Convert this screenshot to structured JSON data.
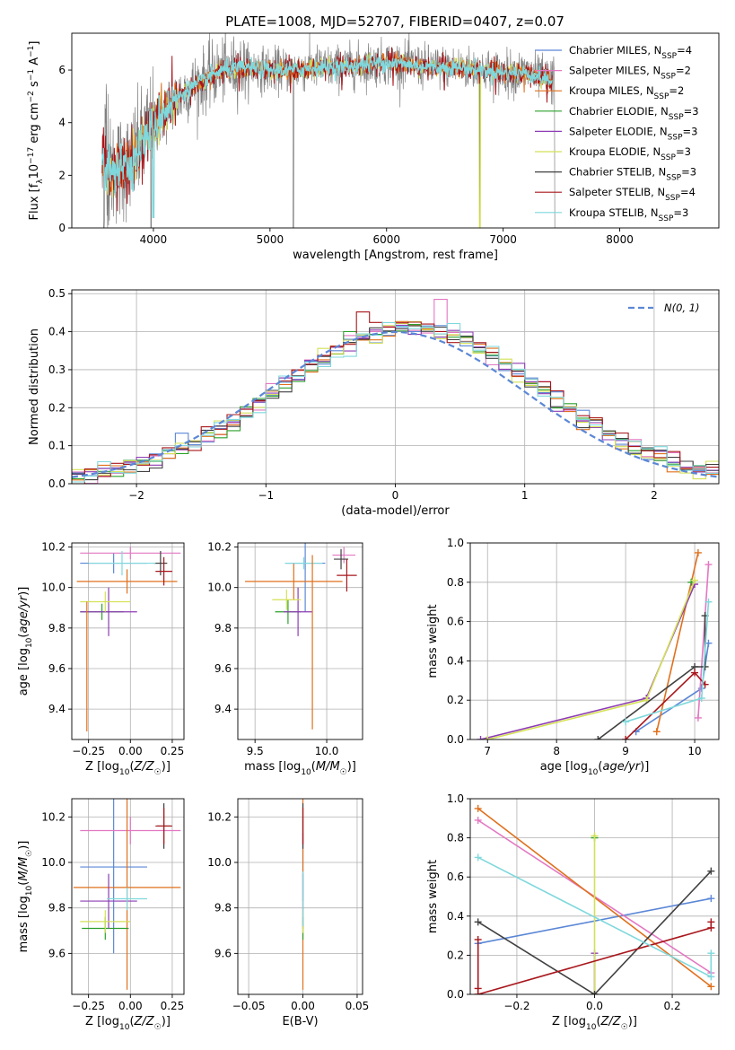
{
  "figure": {
    "title": "PLATE=1008, MJD=52707, FIBERID=0407, z=0.07"
  },
  "colors": {
    "Chabrier MILES": "#5b87d6",
    "Salpeter MILES": "#e377c2",
    "Kroupa MILES": "#e0701d",
    "Chabrier ELODIE": "#2ca02c",
    "Salpeter ELODIE": "#8e3cb4",
    "Kroupa ELODIE": "#d4e157",
    "Chabrier STELIB": "#404040",
    "Salpeter STELIB": "#a8171c",
    "Kroupa STELIB": "#7fd8dc",
    "data": "#808080",
    "gaussian": "#5b87d6"
  },
  "chart_data": [
    {
      "id": "spectrum",
      "type": "line",
      "xlabel": "wavelength [Angstrom, rest frame]",
      "ylabel": "Flux [f_λ10^-17 erg cm^-2 s^-1 A^-1]",
      "xlim": [
        3300,
        8850
      ],
      "ylim": [
        0,
        7.4
      ],
      "xticks": [
        4000,
        5000,
        6000,
        7000,
        8000
      ],
      "yticks": [
        0,
        2,
        4,
        6
      ],
      "grid": false,
      "legend_position": "top-right",
      "legend": [
        {
          "model": "Chabrier MILES",
          "n": "4"
        },
        {
          "model": "Salpeter MILES",
          "n": "2"
        },
        {
          "model": "Kroupa MILES",
          "n": "2"
        },
        {
          "model": "Chabrier ELODIE",
          "n": "3"
        },
        {
          "model": "Salpeter ELODIE",
          "n": "3"
        },
        {
          "model": "Kroupa ELODIE",
          "n": "3"
        },
        {
          "model": "Chabrier STELIB",
          "n": "3"
        },
        {
          "model": "Salpeter STELIB",
          "n": "4"
        },
        {
          "model": "Kroupa STELIB",
          "n": "3"
        }
      ],
      "continuum": {
        "x": [
          3560,
          3620,
          3700,
          3800,
          3900,
          4000,
          4100,
          4200,
          4300,
          4400,
          4500,
          4600,
          4800,
          5000,
          5200,
          5400,
          5600,
          5800,
          6000,
          6200,
          6400,
          6600,
          6800,
          7000,
          7200,
          7400
        ],
        "y": [
          2.6,
          2.0,
          2.3,
          2.4,
          3.2,
          3.9,
          4.5,
          4.9,
          5.3,
          5.5,
          5.8,
          6.0,
          6.1,
          6.0,
          6.0,
          6.1,
          6.1,
          6.2,
          6.3,
          6.2,
          6.1,
          6.1,
          6.0,
          5.9,
          5.9,
          5.6
        ]
      }
    },
    {
      "id": "residuals",
      "type": "histogram",
      "xlabel": "(data-model)/error",
      "ylabel": "Normed distribution",
      "xlim": [
        -2.5,
        2.5
      ],
      "ylim": [
        0,
        0.51
      ],
      "xticks": [
        -2,
        -1,
        0,
        1,
        2
      ],
      "yticks": [
        0.0,
        0.1,
        0.2,
        0.3,
        0.4,
        0.5
      ],
      "grid": true,
      "legend_position": "top-right",
      "gaussian_label": "N(0,1)",
      "bin_width": 0.1
    },
    {
      "id": "age-vs-Z",
      "type": "errorbar",
      "xlabel": "Z [log10(Z/Z☉)]",
      "ylabel": "age [log10(age/yr)]",
      "xlim": [
        -0.35,
        0.32
      ],
      "ylim": [
        9.25,
        10.22
      ],
      "xticks": [
        -0.25,
        0.0,
        0.25
      ],
      "yticks": [
        9.4,
        9.6,
        9.8,
        10.0,
        10.2
      ],
      "grid": true,
      "points": [
        {
          "model": "Chabrier MILES",
          "x": -0.1,
          "xerr": 0.2,
          "y": 10.12,
          "yerr": 0.05
        },
        {
          "model": "Salpeter MILES",
          "x": 0.0,
          "xerr": 0.3,
          "y": 10.17,
          "yerr": 0.03
        },
        {
          "model": "Kroupa MILES",
          "x": -0.02,
          "xerr": 0.3,
          "y": 10.03,
          "yerr": 0.06
        },
        {
          "model": "Chabrier ELODIE",
          "x": -0.17,
          "xerr": 0.13,
          "y": 9.88,
          "yerr": 0.04
        },
        {
          "model": "Salpeter ELODIE",
          "x": -0.13,
          "xerr": 0.17,
          "y": 9.88,
          "yerr": 0.12
        },
        {
          "model": "Kroupa ELODIE",
          "x": -0.15,
          "xerr": 0.15,
          "y": 9.93,
          "yerr": 0.05
        },
        {
          "model": "Chabrier STELIB",
          "x": 0.18,
          "xerr": 0.04,
          "y": 10.12,
          "yerr": 0.06
        },
        {
          "model": "Salpeter STELIB",
          "x": 0.2,
          "xerr": 0.05,
          "y": 10.08,
          "yerr": 0.07
        },
        {
          "model": "Kroupa STELIB",
          "x": -0.05,
          "xerr": 0.2,
          "y": 10.12,
          "yerr": 0.06
        },
        {
          "model": "Kroupa MILES",
          "x": -0.26,
          "xerr": 0.0,
          "y": 9.61,
          "yerr": 0.32
        }
      ]
    },
    {
      "id": "age-vs-mass",
      "type": "errorbar",
      "xlabel": "mass [log10(M/M☉)]",
      "ylabel": "",
      "xlim": [
        9.38,
        10.25
      ],
      "ylim": [
        9.25,
        10.22
      ],
      "xticks": [
        9.5,
        10.0
      ],
      "yticks": [
        9.4,
        9.6,
        9.8,
        10.0,
        10.2
      ],
      "grid": true,
      "points": [
        {
          "model": "Chabrier MILES",
          "x": 9.85,
          "xerr": 0.14,
          "y": 10.12,
          "yerr": 0.24
        },
        {
          "model": "Salpeter MILES",
          "x": 10.12,
          "xerr": 0.08,
          "y": 10.16,
          "yerr": 0.04
        },
        {
          "model": "Kroupa MILES",
          "x": 9.77,
          "xerr": 0.34,
          "y": 10.03,
          "yerr": 0.09
        },
        {
          "model": "Chabrier ELODIE",
          "x": 9.73,
          "xerr": 0.09,
          "y": 9.88,
          "yerr": 0.06
        },
        {
          "model": "Salpeter ELODIE",
          "x": 9.8,
          "xerr": 0.1,
          "y": 9.88,
          "yerr": 0.12
        },
        {
          "model": "Kroupa ELODIE",
          "x": 9.72,
          "xerr": 0.1,
          "y": 9.94,
          "yerr": 0.05
        },
        {
          "model": "Chabrier STELIB",
          "x": 10.1,
          "xerr": 0.05,
          "y": 10.14,
          "yerr": 0.05
        },
        {
          "model": "Salpeter STELIB",
          "x": 10.14,
          "xerr": 0.07,
          "y": 10.06,
          "yerr": 0.08
        },
        {
          "model": "Kroupa STELIB",
          "x": 9.84,
          "xerr": 0.13,
          "y": 10.12,
          "yerr": 0.03
        },
        {
          "model": "Kroupa MILES",
          "x": 9.9,
          "xerr": 0.0,
          "y": 9.73,
          "yerr": 0.43
        }
      ]
    },
    {
      "id": "weight-vs-age",
      "type": "line",
      "xlabel": "age [log10(age/yr)]",
      "ylabel": "mass weight",
      "xlim": [
        6.75,
        10.35
      ],
      "ylim": [
        0,
        1.0
      ],
      "xticks": [
        7,
        8,
        9,
        10
      ],
      "yticks": [
        0.0,
        0.2,
        0.4,
        0.6,
        0.8,
        1.0
      ],
      "grid": true,
      "series": [
        {
          "model": "Chabrier MILES",
          "x": [
            9.15,
            10.1,
            10.2
          ],
          "y": [
            0.04,
            0.26,
            0.49
          ]
        },
        {
          "model": "Salpeter MILES",
          "x": [
            10.05,
            10.2
          ],
          "y": [
            0.11,
            0.89
          ]
        },
        {
          "model": "Kroupa MILES",
          "x": [
            9.45,
            10.05
          ],
          "y": [
            0.04,
            0.95
          ]
        },
        {
          "model": "Chabrier ELODIE",
          "x": [
            9.95
          ],
          "y": [
            0.8
          ]
        },
        {
          "model": "Salpeter ELODIE",
          "x": [
            6.9,
            9.3,
            10.0
          ],
          "y": [
            0.0,
            0.21,
            0.79
          ]
        },
        {
          "model": "Kroupa ELODIE",
          "x": [
            7.0,
            9.3,
            10.0
          ],
          "y": [
            0.0,
            0.2,
            0.81
          ]
        },
        {
          "model": "Chabrier STELIB",
          "x": [
            8.6,
            10.0,
            10.15,
            10.15
          ],
          "y": [
            0.0,
            0.37,
            0.37,
            0.63
          ]
        },
        {
          "model": "Salpeter STELIB",
          "x": [
            9.0,
            10.0,
            10.15
          ],
          "y": [
            0.0,
            0.34,
            0.28
          ]
        },
        {
          "model": "Kroupa STELIB",
          "x": [
            9.0,
            10.1,
            10.2
          ],
          "y": [
            0.09,
            0.21,
            0.7
          ]
        }
      ]
    },
    {
      "id": "mass-vs-Z",
      "type": "errorbar",
      "xlabel": "Z [log10(Z/Z☉)]",
      "ylabel": "mass [log10(M/M☉)]",
      "xlim": [
        -0.35,
        0.32
      ],
      "ylim": [
        9.42,
        10.28
      ],
      "xticks": [
        -0.25,
        0.0,
        0.25
      ],
      "yticks": [
        9.6,
        9.8,
        10.0,
        10.2
      ],
      "grid": true,
      "points": [
        {
          "model": "Chabrier MILES",
          "x": -0.1,
          "xerr": 0.2,
          "y": 9.98,
          "yerr": 0.38
        },
        {
          "model": "Salpeter MILES",
          "x": 0.0,
          "xerr": 0.3,
          "y": 10.14,
          "yerr": 0.06
        },
        {
          "model": "Kroupa MILES",
          "x": -0.02,
          "xerr": 0.32,
          "y": 9.89,
          "yerr": 0.45
        },
        {
          "model": "Chabrier ELODIE",
          "x": -0.15,
          "xerr": 0.14,
          "y": 9.71,
          "yerr": 0.05
        },
        {
          "model": "Salpeter ELODIE",
          "x": -0.13,
          "xerr": 0.17,
          "y": 9.83,
          "yerr": 0.12
        },
        {
          "model": "Kroupa ELODIE",
          "x": -0.15,
          "xerr": 0.15,
          "y": 9.74,
          "yerr": 0.05
        },
        {
          "model": "Chabrier STELIB",
          "x": 0.2,
          "xerr": 0.04,
          "y": 10.16,
          "yerr": 0.1
        },
        {
          "model": "Salpeter STELIB",
          "x": 0.2,
          "xerr": 0.05,
          "y": 10.16,
          "yerr": 0.08
        },
        {
          "model": "Kroupa STELIB",
          "x": -0.02,
          "xerr": 0.12,
          "y": 9.84,
          "yerr": 0.05
        }
      ]
    },
    {
      "id": "mass-vs-EBV",
      "type": "errorbar",
      "xlabel": "E(B-V)",
      "ylabel": "",
      "xlim": [
        -0.06,
        0.055
      ],
      "ylim": [
        9.42,
        10.28
      ],
      "xticks": [
        -0.05,
        0.0,
        0.05
      ],
      "yticks": [
        9.6,
        9.8,
        10.0,
        10.2
      ],
      "grid": true,
      "points": [
        {
          "model": "Chabrier MILES",
          "x": 0.0,
          "xerr": 0.0,
          "y": 9.98,
          "yerr": 0.15
        },
        {
          "model": "Salpeter MILES",
          "x": 0.0,
          "xerr": 0.0,
          "y": 10.14,
          "yerr": 0.06
        },
        {
          "model": "Kroupa MILES",
          "x": 0.0,
          "xerr": 0.0,
          "y": 9.89,
          "yerr": 0.45
        },
        {
          "model": "Chabrier ELODIE",
          "x": 0.0,
          "xerr": 0.0,
          "y": 9.71,
          "yerr": 0.05
        },
        {
          "model": "Salpeter ELODIE",
          "x": 0.0,
          "xerr": 0.0,
          "y": 9.83,
          "yerr": 0.12
        },
        {
          "model": "Kroupa ELODIE",
          "x": 0.0,
          "xerr": 0.0,
          "y": 9.74,
          "yerr": 0.05
        },
        {
          "model": "Chabrier STELIB",
          "x": 0.0,
          "xerr": 0.0,
          "y": 10.16,
          "yerr": 0.1
        },
        {
          "model": "Salpeter STELIB",
          "x": 0.0,
          "xerr": 0.0,
          "y": 10.16,
          "yerr": 0.08
        },
        {
          "model": "Kroupa STELIB",
          "x": 0.0,
          "xerr": 0.0,
          "y": 9.84,
          "yerr": 0.12
        }
      ]
    },
    {
      "id": "weight-vs-Z",
      "type": "line",
      "xlabel": "Z [log10(Z/Z☉)]",
      "ylabel": "mass weight",
      "xlim": [
        -0.32,
        0.32
      ],
      "ylim": [
        0,
        1.0
      ],
      "xticks": [
        -0.2,
        0.0,
        0.2
      ],
      "yticks": [
        0.0,
        0.2,
        0.4,
        0.6,
        0.8,
        1.0
      ],
      "grid": true,
      "series": [
        {
          "model": "Chabrier MILES",
          "x": [
            -0.3,
            0.3
          ],
          "y": [
            0.26,
            0.49
          ]
        },
        {
          "model": "Salpeter MILES",
          "x": [
            -0.3,
            0.3
          ],
          "y": [
            0.89,
            0.11
          ]
        },
        {
          "model": "Kroupa MILES",
          "x": [
            -0.3,
            0.3
          ],
          "y": [
            0.95,
            0.04
          ]
        },
        {
          "model": "Chabrier ELODIE",
          "x": [
            0.0
          ],
          "y": [
            0.8
          ]
        },
        {
          "model": "Salpeter ELODIE",
          "x": [
            0.0,
            0.0
          ],
          "y": [
            0.0,
            0.21
          ]
        },
        {
          "model": "Kroupa ELODIE",
          "x": [
            0.0,
            0.0
          ],
          "y": [
            0.0,
            0.81
          ]
        },
        {
          "model": "Chabrier STELIB",
          "x": [
            -0.3,
            0.0,
            0.3
          ],
          "y": [
            0.37,
            0.0,
            0.63
          ]
        },
        {
          "model": "Salpeter STELIB",
          "x": [
            -0.3,
            -0.3,
            -0.3,
            0.3,
            0.3
          ],
          "y": [
            0.28,
            0.03,
            0.0,
            0.34,
            0.37
          ]
        },
        {
          "model": "Kroupa STELIB",
          "x": [
            -0.3,
            0.3,
            0.3
          ],
          "y": [
            0.7,
            0.09,
            0.21
          ]
        }
      ]
    }
  ]
}
